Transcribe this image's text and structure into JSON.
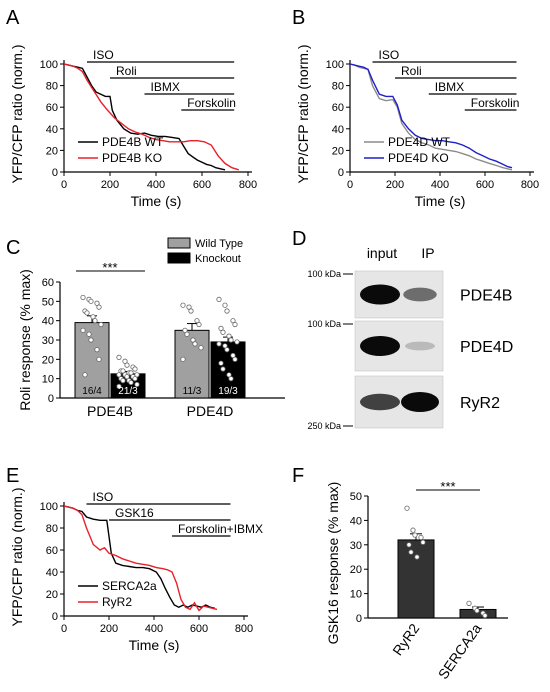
{
  "figure": {
    "panel_letters": [
      "A",
      "B",
      "C",
      "D",
      "E",
      "F"
    ]
  },
  "chart_data": [
    {
      "panel": "A",
      "type": "line",
      "xlabel": "Time (s)",
      "ylabel": "YFP/CFP ratio (norm.)",
      "xlim": [
        0,
        800
      ],
      "ylim": [
        0,
        100
      ],
      "xticks": [
        0,
        200,
        400,
        600,
        800
      ],
      "yticks": [
        0,
        20,
        40,
        60,
        80,
        100
      ],
      "treatments": [
        {
          "label": "ISO",
          "start": 100,
          "end": 740
        },
        {
          "label": "Roli",
          "start": 200,
          "end": 740
        },
        {
          "label": "IBMX",
          "start": 350,
          "end": 740
        },
        {
          "label": "Forskolin",
          "start": 510,
          "end": 740
        }
      ],
      "legend": {
        "placement": "bottom-left",
        "entries": [
          "PDE4B WT",
          "PDE4B KO"
        ]
      },
      "series": [
        {
          "name": "PDE4B WT",
          "color": "#000000",
          "x": [
            0,
            20,
            40,
            60,
            80,
            100,
            120,
            140,
            160,
            180,
            200,
            210,
            230,
            260,
            290,
            320,
            350,
            380,
            410,
            440,
            470,
            500,
            520,
            540,
            560,
            580,
            600,
            620,
            640,
            660,
            680,
            700
          ],
          "y": [
            100,
            99,
            98,
            97,
            96,
            88,
            80,
            74,
            72,
            70,
            70,
            57,
            48,
            40,
            36,
            35,
            36,
            34,
            33,
            33,
            32,
            31,
            24,
            17,
            14,
            11,
            9,
            7,
            6,
            4,
            3,
            2
          ]
        },
        {
          "name": "PDE4B KO",
          "color": "#e8202a",
          "x": [
            0,
            20,
            40,
            60,
            80,
            100,
            130,
            160,
            190,
            220,
            250,
            280,
            310,
            340,
            370,
            400,
            430,
            460,
            490,
            520,
            550,
            580,
            610,
            640,
            670,
            700,
            730,
            760
          ],
          "y": [
            100,
            99,
            98,
            96,
            93,
            85,
            75,
            65,
            57,
            50,
            45,
            40,
            37,
            35,
            32,
            30,
            29,
            28,
            28,
            28,
            29,
            29,
            28,
            25,
            15,
            8,
            4,
            2
          ]
        }
      ]
    },
    {
      "panel": "B",
      "type": "line",
      "xlabel": "Time (s)",
      "ylabel": "YFP/CFP ratio (norm.)",
      "xlim": [
        0,
        800
      ],
      "ylim": [
        0,
        100
      ],
      "xticks": [
        0,
        200,
        400,
        600,
        800
      ],
      "yticks": [
        0,
        20,
        40,
        60,
        80,
        100
      ],
      "treatments": [
        {
          "label": "ISO",
          "start": 100,
          "end": 740
        },
        {
          "label": "Roli",
          "start": 200,
          "end": 740
        },
        {
          "label": "IBMX",
          "start": 350,
          "end": 740
        },
        {
          "label": "Forskolin",
          "start": 510,
          "end": 740
        }
      ],
      "legend": {
        "placement": "bottom-left",
        "entries": [
          "PDE4D WT",
          "PDE4D KO"
        ]
      },
      "series": [
        {
          "name": "PDE4D WT",
          "color": "#8c8c8c",
          "x": [
            0,
            20,
            40,
            60,
            80,
            100,
            130,
            160,
            190,
            210,
            230,
            260,
            290,
            320,
            350,
            380,
            410,
            440,
            470,
            500,
            530,
            560,
            590,
            620,
            650,
            680,
            700,
            720
          ],
          "y": [
            100,
            99,
            97,
            96,
            95,
            80,
            68,
            66,
            67,
            60,
            45,
            36,
            30,
            27,
            25,
            22,
            21,
            20,
            19,
            17,
            15,
            12,
            10,
            8,
            6,
            4,
            3,
            2
          ]
        },
        {
          "name": "PDE4D KO",
          "color": "#2020c8",
          "x": [
            0,
            20,
            40,
            60,
            80,
            100,
            130,
            160,
            190,
            210,
            230,
            260,
            290,
            320,
            350,
            380,
            410,
            440,
            470,
            500,
            530,
            560,
            590,
            620,
            650,
            680,
            700,
            720
          ],
          "y": [
            100,
            99,
            98,
            97,
            95,
            85,
            72,
            70,
            70,
            62,
            48,
            40,
            34,
            31,
            30,
            29,
            29,
            28,
            27,
            25,
            22,
            18,
            15,
            12,
            10,
            7,
            5,
            4
          ]
        }
      ]
    },
    {
      "panel": "C",
      "type": "bar",
      "ylabel": "Roli response (% max)",
      "ylim": [
        0,
        60
      ],
      "yticks": [
        0,
        10,
        20,
        30,
        40,
        50,
        60
      ],
      "categories": [
        "PDE4B",
        "PDE4D"
      ],
      "legend": {
        "placement": "top-right",
        "entries": [
          "Wild Type",
          "Knockout"
        ]
      },
      "series": [
        {
          "name": "Wild Type",
          "color": "#a0a0a0",
          "values": [
            39,
            35
          ],
          "sem": [
            3.5,
            3.5
          ],
          "n_labels": [
            "16/4",
            "11/3"
          ],
          "points": [
            [
              52,
              51,
              50,
              49,
              47,
              45,
              44,
              42,
              40,
              38,
              35,
              33,
              30,
              25,
              20,
              12
            ],
            [
              48,
              47,
              45,
              40,
              38,
              35,
              33,
              30,
              28,
              26,
              20
            ]
          ]
        },
        {
          "name": "Knockout",
          "color": "#000000",
          "values": [
            12.5,
            29
          ],
          "sem": [
            1.2,
            2.5
          ],
          "n_labels": [
            "21/3",
            "19/3"
          ],
          "points": [
            [
              21,
              19,
              17,
              16,
              15,
              14,
              14,
              13,
              13,
              12,
              12,
              12,
              11,
              11,
              10,
              10,
              9,
              9,
              8,
              7,
              6
            ],
            [
              51,
              48,
              45,
              40,
              38,
              36,
              34,
              32,
              30,
              29,
              28,
              27,
              25,
              22,
              20,
              18,
              15,
              12,
              10
            ]
          ]
        }
      ],
      "significance": {
        "label": "***",
        "between": [
          "PDE4B Wild Type",
          "PDE4B Knockout"
        ]
      }
    },
    {
      "panel": "D",
      "type": "blot",
      "columns": [
        "input",
        "IP"
      ],
      "rows": [
        {
          "label": "PDE4B",
          "marker": "100 kDa",
          "band_intensity": [
            1.0,
            0.55
          ]
        },
        {
          "label": "PDE4D",
          "marker": "100 kDa",
          "band_intensity": [
            1.0,
            0.2
          ]
        },
        {
          "label": "RyR2",
          "marker": "250 kDa",
          "band_intensity": [
            0.75,
            1.0
          ]
        }
      ]
    },
    {
      "panel": "E",
      "type": "line",
      "xlabel": "Time (s)",
      "ylabel": "YFP/CFP ratio (norm.)",
      "xlim": [
        0,
        800
      ],
      "ylim": [
        0,
        100
      ],
      "xticks": [
        0,
        200,
        400,
        600,
        800
      ],
      "yticks": [
        0,
        20,
        40,
        60,
        80,
        100
      ],
      "treatments": [
        {
          "label": "ISO",
          "start": 100,
          "end": 740
        },
        {
          "label": "GSK16",
          "start": 200,
          "end": 740
        },
        {
          "label": "Forskolin+IBMX",
          "start": 480,
          "end": 740
        }
      ],
      "legend": {
        "placement": "bottom-left",
        "entries": [
          "SERCA2a",
          "RyR2"
        ]
      },
      "series": [
        {
          "name": "SERCA2a",
          "color": "#000000",
          "x": [
            0,
            20,
            40,
            60,
            80,
            100,
            130,
            160,
            190,
            210,
            230,
            260,
            290,
            320,
            350,
            380,
            410,
            430,
            450,
            470,
            490,
            510,
            530,
            550,
            570,
            590,
            610,
            630,
            650,
            670
          ],
          "y": [
            100,
            99,
            98,
            96,
            95,
            90,
            88,
            87,
            87,
            57,
            48,
            46,
            45,
            44,
            44,
            43,
            40,
            34,
            25,
            17,
            10,
            8,
            10,
            8,
            10,
            9,
            8,
            10,
            8,
            7
          ]
        },
        {
          "name": "RyR2",
          "color": "#e8202a",
          "x": [
            0,
            20,
            40,
            60,
            80,
            100,
            130,
            160,
            180,
            200,
            230,
            260,
            290,
            320,
            350,
            380,
            410,
            440,
            460,
            480,
            500,
            520,
            540,
            560,
            580,
            600,
            620,
            640,
            660,
            680
          ],
          "y": [
            100,
            99,
            98,
            96,
            92,
            80,
            65,
            60,
            62,
            57,
            55,
            52,
            50,
            48,
            47,
            46,
            44,
            43,
            42,
            40,
            30,
            15,
            8,
            6,
            12,
            5,
            9,
            8,
            7,
            6
          ]
        }
      ]
    },
    {
      "panel": "F",
      "type": "bar",
      "ylabel": "GSK16 response (% max)",
      "ylim": [
        0,
        50
      ],
      "yticks": [
        0,
        10,
        20,
        30,
        40,
        50
      ],
      "categories": [
        "RyR2",
        "SERCA2a"
      ],
      "series": [
        {
          "values": [
            32,
            3.5
          ],
          "sem": [
            2.5,
            1.0
          ],
          "color": "#333333",
          "points": [
            [
              45,
              36,
              34,
              33,
              31,
              30,
              27,
              25
            ],
            [
              6,
              4,
              3,
              2,
              1
            ]
          ]
        }
      ],
      "significance": {
        "label": "***",
        "between": [
          "RyR2",
          "SERCA2a"
        ]
      }
    }
  ]
}
